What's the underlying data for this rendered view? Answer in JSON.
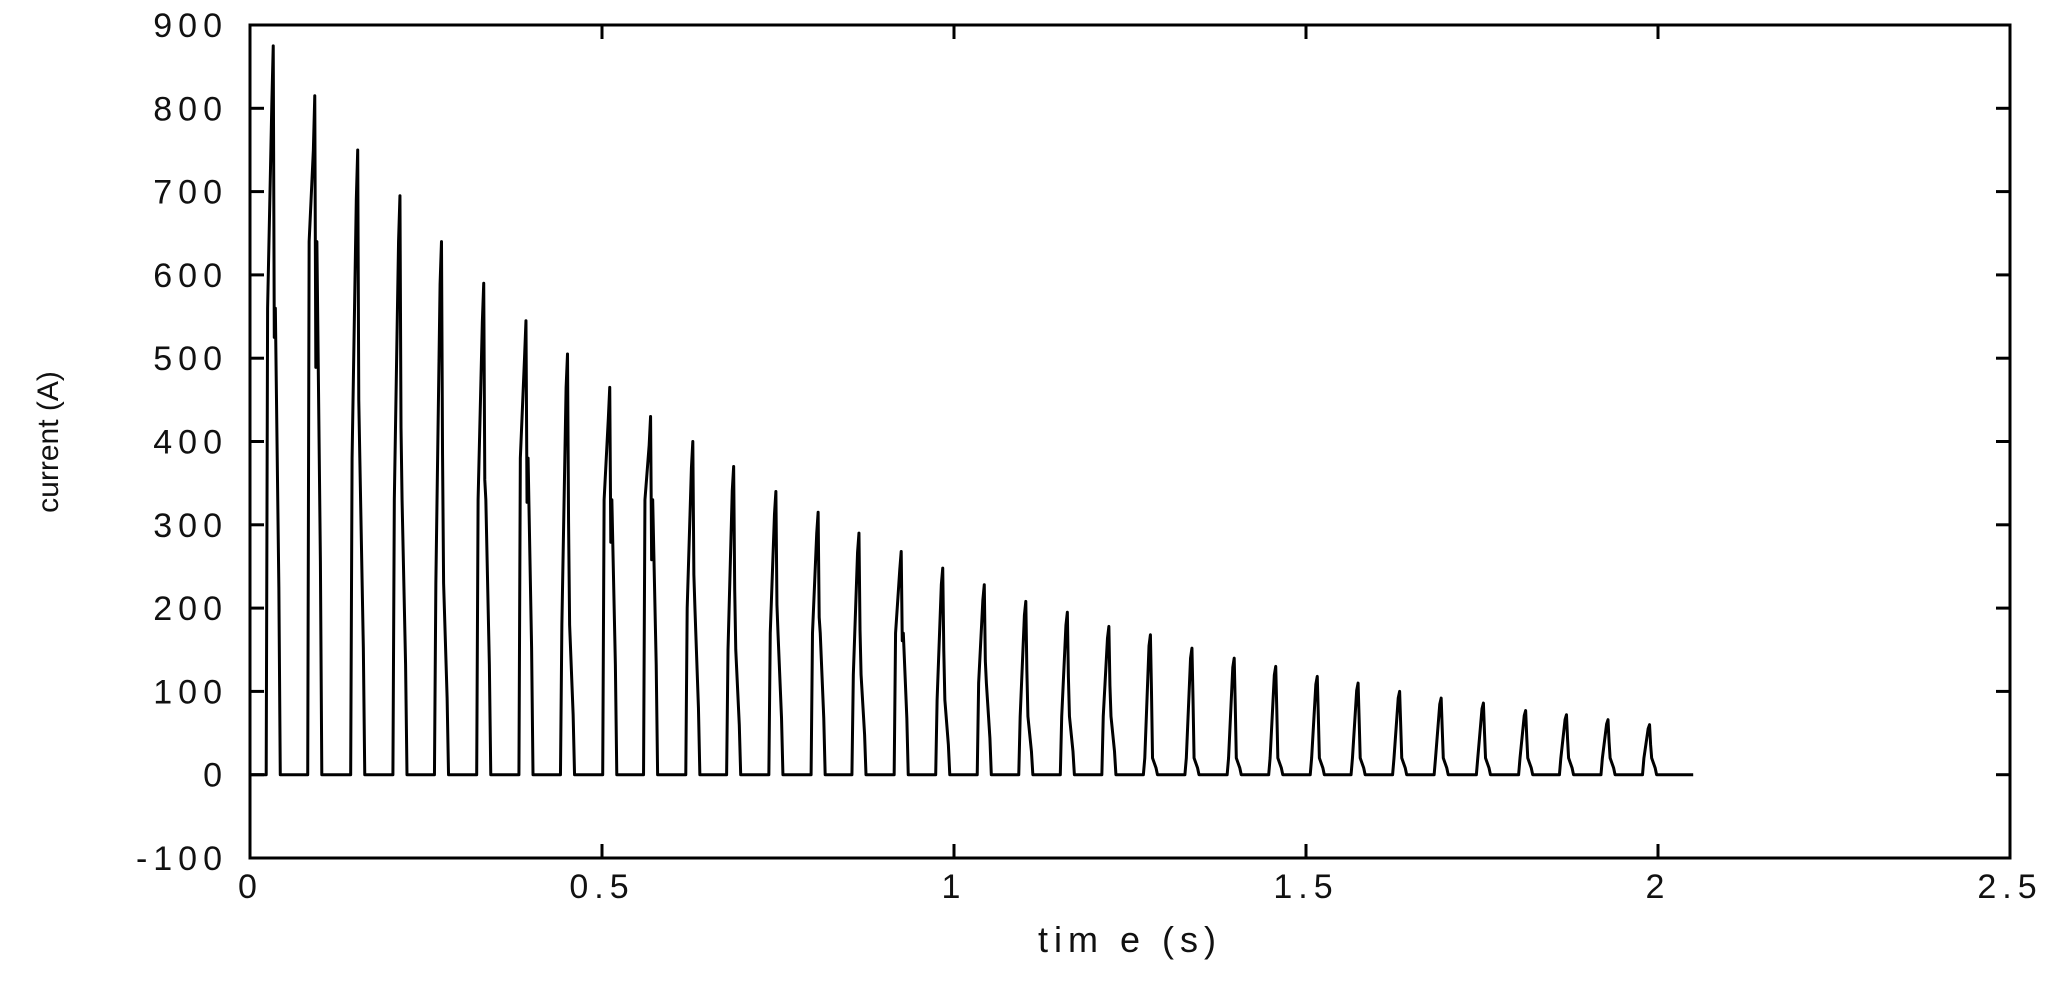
{
  "chart_data": {
    "type": "line",
    "title": "",
    "xlabel": "tim e  (s)",
    "ylabel": "current (A)",
    "xlim": [
      0,
      2.5
    ],
    "ylim": [
      -100,
      900
    ],
    "x_ticks": [
      0,
      0.5,
      1,
      1.5,
      2,
      2.5
    ],
    "x_tick_labels": [
      "0",
      "0.5",
      "1",
      "1.5",
      "2",
      "2.5"
    ],
    "y_ticks": [
      -100,
      0,
      100,
      200,
      300,
      400,
      500,
      600,
      700,
      800,
      900
    ],
    "y_tick_labels": [
      "-100",
      "0",
      "100",
      "200",
      "300",
      "400",
      "500",
      "600",
      "700",
      "800",
      "900"
    ],
    "grid": false,
    "line_color": "#000000",
    "series": [
      {
        "pulse_times_s": [
          0.033,
          0.092,
          0.153,
          0.213,
          0.272,
          0.332,
          0.392,
          0.451,
          0.511,
          0.569,
          0.629,
          0.687,
          0.747,
          0.807,
          0.865,
          0.925,
          0.984,
          1.043,
          1.102,
          1.161,
          1.22,
          1.279,
          1.338,
          1.398,
          1.457,
          1.516,
          1.574,
          1.633,
          1.692,
          1.752,
          1.812,
          1.87,
          1.929,
          1.988
        ],
        "pulse_peak_current_A": [
          875,
          815,
          750,
          695,
          640,
          590,
          545,
          505,
          465,
          430,
          400,
          370,
          340,
          315,
          290,
          268,
          248,
          228,
          208,
          195,
          178,
          168,
          152,
          140,
          130,
          118,
          110,
          100,
          92,
          86,
          77,
          72,
          66,
          60
        ],
        "pulse_shoulder_current_A": [
          560,
          640,
          380,
          330,
          230,
          330,
          380,
          180,
          330,
          330,
          200,
          150,
          170,
          170,
          120,
          170,
          90,
          110,
          70,
          70,
          70,
          20,
          20,
          20,
          20,
          20,
          20,
          20,
          20,
          20,
          20,
          20,
          20,
          20
        ],
        "baseline_current_A": 0,
        "end_time_s": 2.05
      }
    ]
  }
}
